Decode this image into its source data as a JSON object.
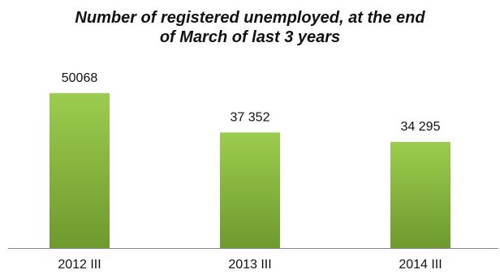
{
  "chart_data": {
    "type": "bar",
    "title_lines": [
      "Number of registered unemployed, at the end",
      "of March of last 3 years"
    ],
    "categories": [
      "2012 III",
      "2013 III",
      "2014 III"
    ],
    "values": [
      50068,
      37352,
      34295
    ],
    "value_labels": [
      "50068",
      "37 352",
      "34 295"
    ],
    "xlabel": "",
    "ylabel": "",
    "ylim": [
      0,
      55000
    ],
    "grid": false,
    "legend": "none",
    "colors": {
      "bar_light": "#9ccc4e",
      "bar_dark": "#6e9a2e",
      "axis": "#888888",
      "text": "#111111"
    }
  }
}
